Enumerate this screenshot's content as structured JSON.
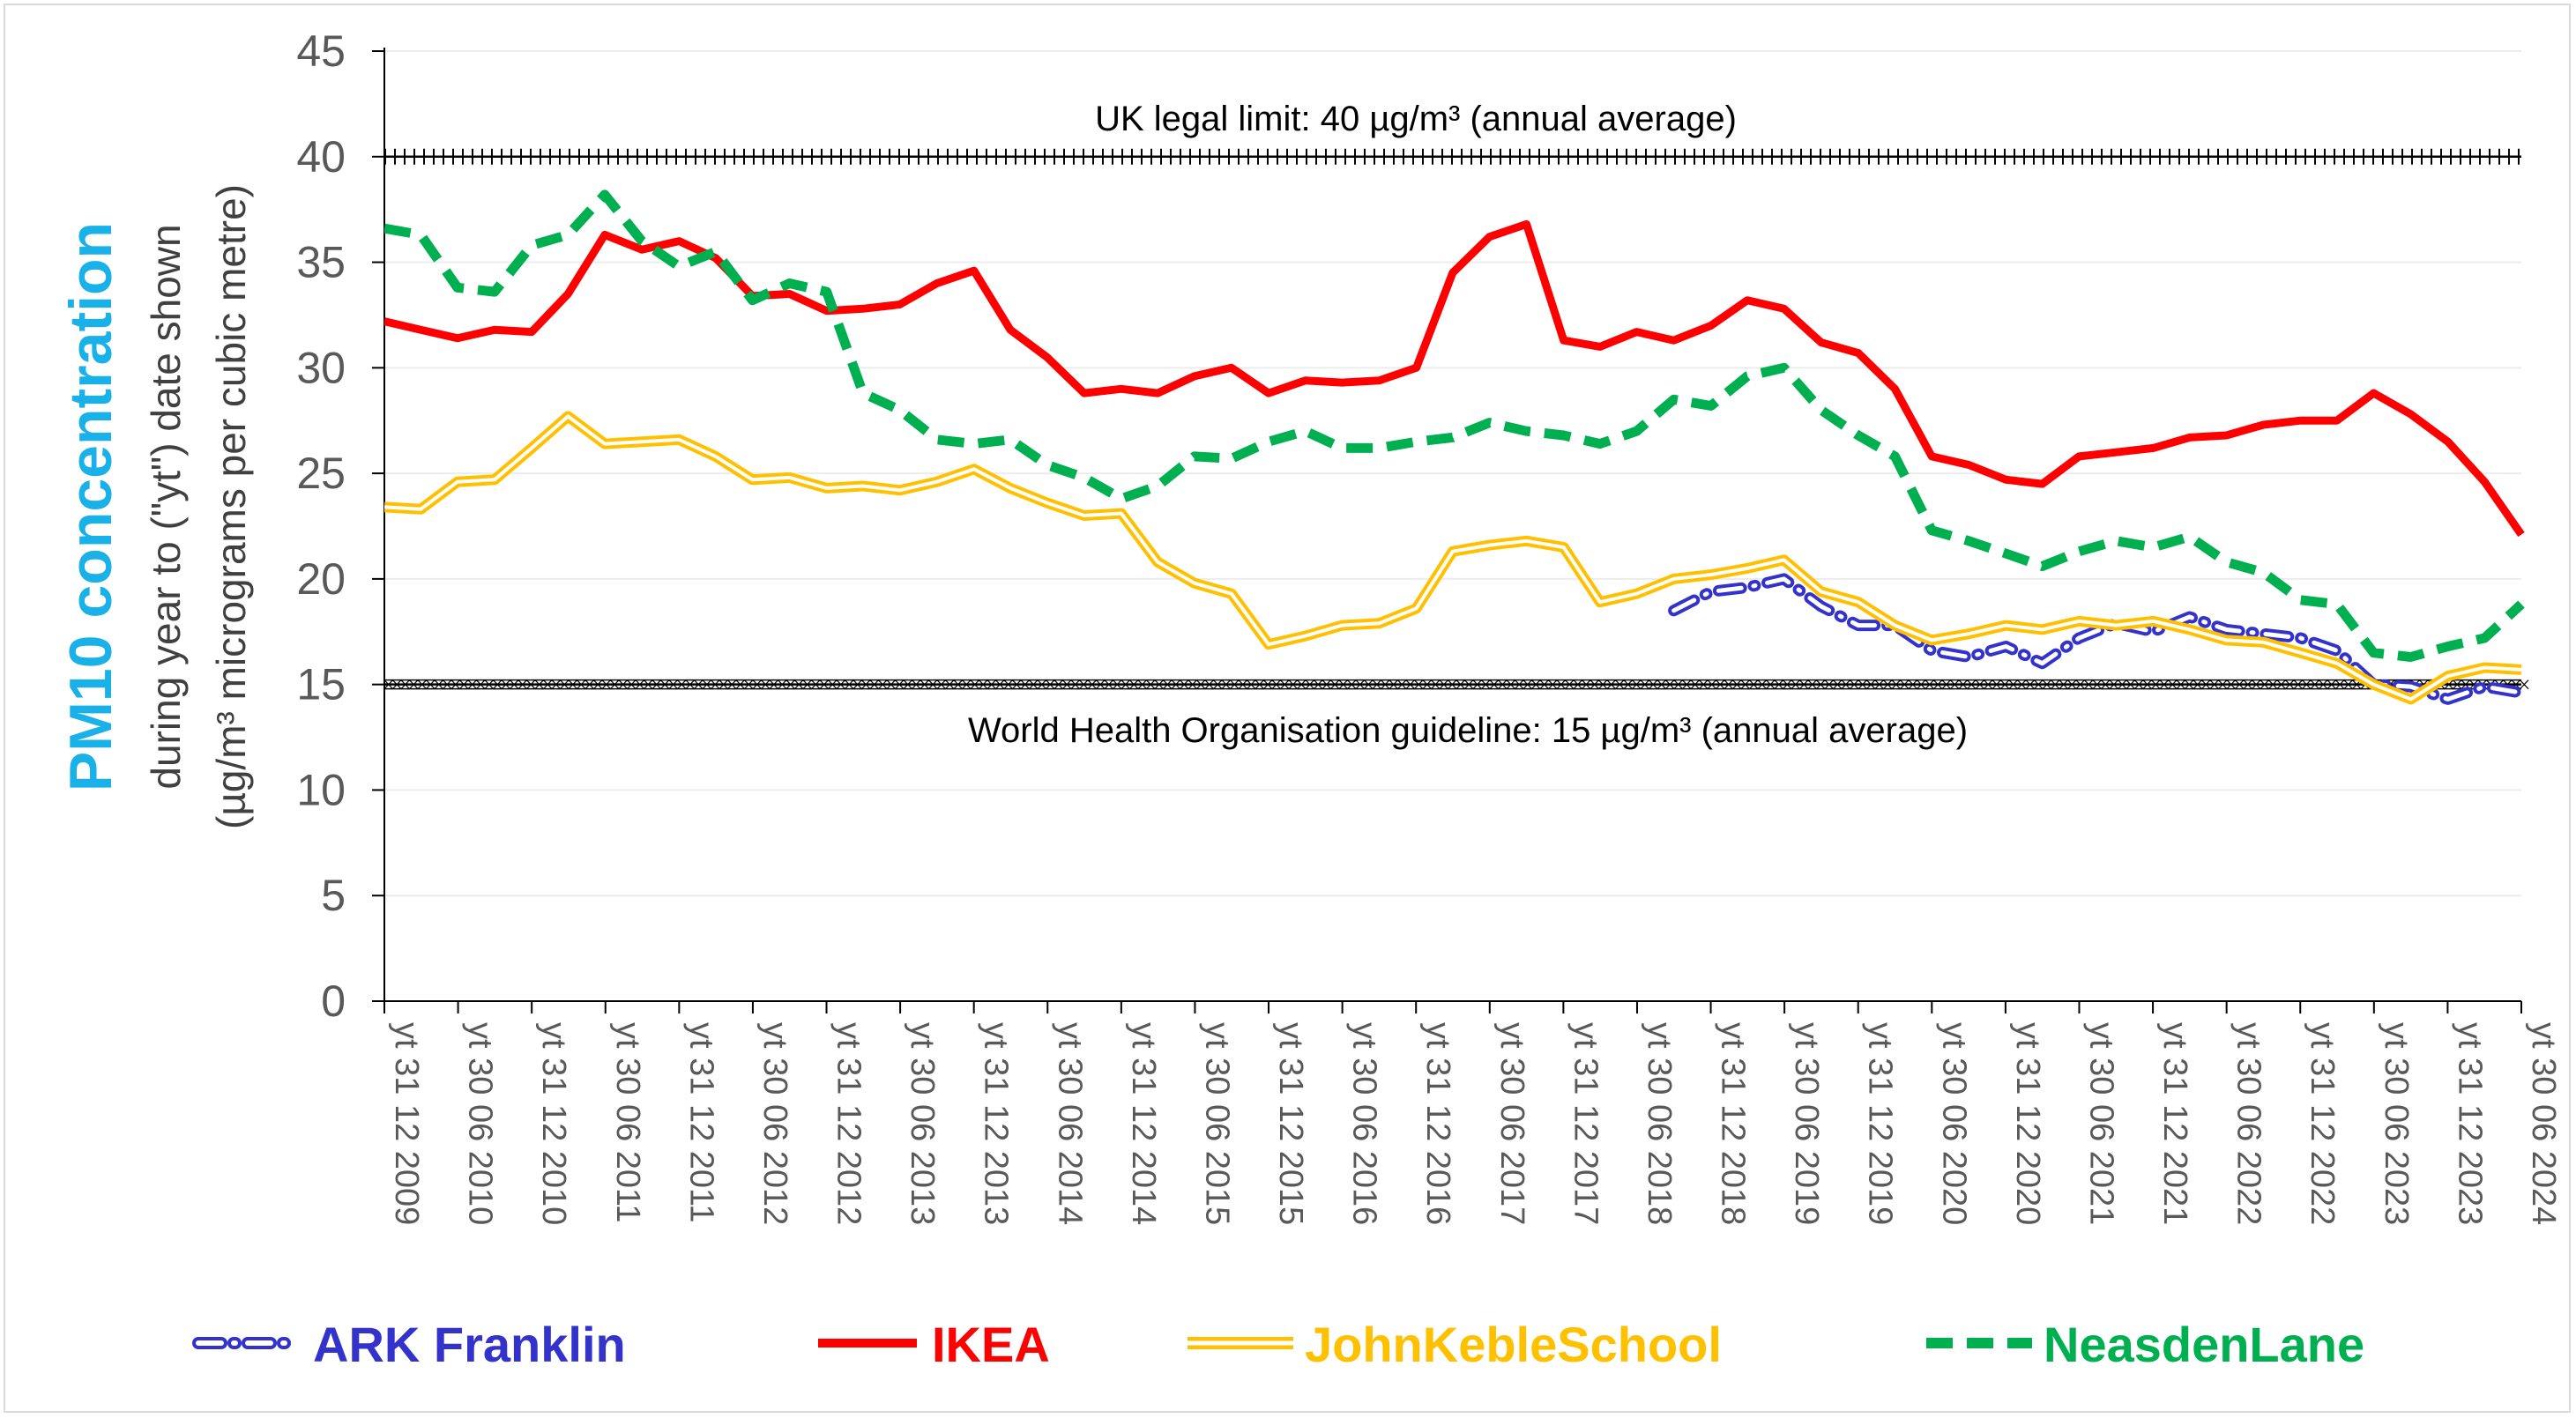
{
  "chart_data": {
    "type": "line",
    "ylabel_main": "PM10 concentration",
    "ylabel_sub1": "during year to (\"yt\") date shown",
    "ylabel_sub2": "(µg/m³ micrograms per cubic metre)",
    "ylim": [
      0,
      45
    ],
    "yticks": [
      0,
      5,
      10,
      15,
      20,
      25,
      30,
      35,
      40,
      45
    ],
    "xlim": [
      "2009-12-31",
      "2024-06-30"
    ],
    "xticks": [
      "yt 31 12 2009",
      "yt 30 06 2010",
      "yt 31 12 2010",
      "yt 30 06 2011",
      "yt 31 12 2011",
      "yt 30 06 2012",
      "yt 31 12 2012",
      "yt 30 06 2013",
      "yt 31 12 2013",
      "yt 30 06 2014",
      "yt 31 12 2014",
      "yt 30 06 2015",
      "yt 31 12 2015",
      "yt 30 06 2016",
      "yt 31 12 2016",
      "yt 30 06 2017",
      "yt 31 12 2017",
      "yt 30 06 2018",
      "yt 31 12 2018",
      "yt 30 06 2019",
      "yt 31 12 2019",
      "yt 30 06 2020",
      "yt 31 12 2020",
      "yt 30 06 2021",
      "yt 31 12 2021",
      "yt 30 06 2022",
      "yt 31 12 2022",
      "yt 30 06 2023",
      "yt 31 12 2023",
      "yt 30 06 2024"
    ],
    "grid": "horizontal",
    "legend_position": "bottom",
    "reference_lines": [
      {
        "value": 40,
        "label": "UK legal limit: 40 µg/m³ (annual average)"
      },
      {
        "value": 15,
        "label": "World Health Organisation guideline: 15 µg/m³ (annual average)"
      }
    ],
    "series": [
      {
        "name": "ARK Franklin",
        "color": "#3333cc",
        "style": "dash-dot-outline",
        "x": [
          "2018-09-30",
          "2018-12-31",
          "2019-03-31",
          "2019-06-30",
          "2019-09-30",
          "2019-12-31",
          "2020-03-31",
          "2020-06-30",
          "2020-09-30",
          "2020-12-31",
          "2021-03-31",
          "2021-06-30",
          "2021-09-30",
          "2021-12-31",
          "2022-03-31",
          "2022-06-30",
          "2022-09-30",
          "2022-12-31",
          "2023-03-31",
          "2023-06-30",
          "2023-09-30",
          "2023-12-31",
          "2024-03-31",
          "2024-06-30"
        ],
        "values": [
          18.5,
          19.4,
          19.6,
          20.0,
          18.7,
          17.8,
          17.8,
          16.6,
          16.3,
          16.8,
          16.0,
          17.2,
          17.9,
          17.5,
          18.2,
          17.6,
          17.4,
          17.2,
          16.6,
          15.0,
          14.9,
          14.3,
          14.9,
          14.6
        ]
      },
      {
        "name": "IKEA",
        "color": "#ff0000",
        "style": "solid",
        "x": [
          "2009-12-31",
          "2010-03-31",
          "2010-06-30",
          "2010-09-30",
          "2010-12-31",
          "2011-03-31",
          "2011-06-30",
          "2011-09-30",
          "2011-12-31",
          "2012-03-31",
          "2012-06-30",
          "2012-09-30",
          "2012-12-31",
          "2013-03-31",
          "2013-06-30",
          "2013-09-30",
          "2013-12-31",
          "2014-03-31",
          "2014-06-30",
          "2014-09-30",
          "2014-12-31",
          "2015-03-31",
          "2015-06-30",
          "2015-09-30",
          "2015-12-31",
          "2016-03-31",
          "2016-06-30",
          "2016-09-30",
          "2016-12-31",
          "2017-03-31",
          "2017-06-30",
          "2017-09-30",
          "2017-12-31",
          "2018-03-31",
          "2018-06-30",
          "2018-09-30",
          "2018-12-31",
          "2019-03-31",
          "2019-06-30",
          "2019-09-30",
          "2019-12-31",
          "2020-03-31",
          "2020-06-30",
          "2020-09-30",
          "2020-12-31",
          "2021-03-31",
          "2021-06-30",
          "2021-09-30",
          "2021-12-31",
          "2022-03-31",
          "2022-06-30",
          "2022-09-30",
          "2022-12-31",
          "2023-03-31",
          "2023-06-30",
          "2023-09-30",
          "2023-12-31",
          "2024-03-31",
          "2024-06-30"
        ],
        "values": [
          32.2,
          31.8,
          31.4,
          31.8,
          31.7,
          33.5,
          36.3,
          35.6,
          36.0,
          35.2,
          33.4,
          33.5,
          32.7,
          32.8,
          33.0,
          34.0,
          34.6,
          31.8,
          30.5,
          28.8,
          29.0,
          28.8,
          29.6,
          30.0,
          28.8,
          29.4,
          29.3,
          29.4,
          30.0,
          34.5,
          36.2,
          36.8,
          31.3,
          31.0,
          31.7,
          31.3,
          32.0,
          33.2,
          32.8,
          31.2,
          30.7,
          29.0,
          25.8,
          25.4,
          24.7,
          24.5,
          25.8,
          26.0,
          26.2,
          26.7,
          26.8,
          27.3,
          27.5,
          27.5,
          28.8,
          27.8,
          26.5,
          24.6,
          22.1
        ]
      },
      {
        "name": "JohnKebleSchool",
        "color": "#ffc000",
        "style": "double",
        "x": [
          "2009-12-31",
          "2010-03-31",
          "2010-06-30",
          "2010-09-30",
          "2010-12-31",
          "2011-03-31",
          "2011-06-30",
          "2011-09-30",
          "2011-12-31",
          "2012-03-31",
          "2012-06-30",
          "2012-09-30",
          "2012-12-31",
          "2013-03-31",
          "2013-06-30",
          "2013-09-30",
          "2013-12-31",
          "2014-03-31",
          "2014-06-30",
          "2014-09-30",
          "2014-12-31",
          "2015-03-31",
          "2015-06-30",
          "2015-09-30",
          "2015-12-31",
          "2016-03-31",
          "2016-06-30",
          "2016-09-30",
          "2016-12-31",
          "2017-03-31",
          "2017-06-30",
          "2017-09-30",
          "2017-12-31",
          "2018-03-31",
          "2018-06-30",
          "2018-09-30",
          "2018-12-31",
          "2019-03-31",
          "2019-06-30",
          "2019-09-30",
          "2019-12-31",
          "2020-03-31",
          "2020-06-30",
          "2020-09-30",
          "2020-12-31",
          "2021-03-31",
          "2021-06-30",
          "2021-09-30",
          "2021-12-31",
          "2022-03-31",
          "2022-06-30",
          "2022-09-30",
          "2022-12-31",
          "2023-03-31",
          "2023-06-30",
          "2023-09-30",
          "2023-12-31",
          "2024-03-31",
          "2024-06-30"
        ],
        "values": [
          23.4,
          23.3,
          24.6,
          24.7,
          26.2,
          27.7,
          26.4,
          26.5,
          26.6,
          25.8,
          24.7,
          24.8,
          24.3,
          24.4,
          24.2,
          24.6,
          25.2,
          24.3,
          23.6,
          23.0,
          23.1,
          20.8,
          19.8,
          19.3,
          16.9,
          17.3,
          17.8,
          17.9,
          18.6,
          21.3,
          21.6,
          21.8,
          21.5,
          18.9,
          19.3,
          20.0,
          20.2,
          20.5,
          20.9,
          19.4,
          18.9,
          17.8,
          17.1,
          17.4,
          17.8,
          17.6,
          18.0,
          17.8,
          18.0,
          17.6,
          17.1,
          17.0,
          16.5,
          16.0,
          15.0,
          14.3,
          15.4,
          15.8,
          15.7
        ]
      },
      {
        "name": "NeasdenLane",
        "color": "#00b050",
        "style": "dashed",
        "x": [
          "2009-12-31",
          "2010-03-31",
          "2010-06-30",
          "2010-09-30",
          "2010-12-31",
          "2011-03-31",
          "2011-06-30",
          "2011-09-30",
          "2011-12-31",
          "2012-03-31",
          "2012-06-30",
          "2012-09-30",
          "2012-12-31",
          "2013-03-31",
          "2013-06-30",
          "2013-09-30",
          "2013-12-31",
          "2014-03-31",
          "2014-06-30",
          "2014-09-30",
          "2014-12-31",
          "2015-03-31",
          "2015-06-30",
          "2015-09-30",
          "2015-12-31",
          "2016-03-31",
          "2016-06-30",
          "2016-09-30",
          "2016-12-31",
          "2017-03-31",
          "2017-06-30",
          "2017-09-30",
          "2017-12-31",
          "2018-03-31",
          "2018-06-30",
          "2018-09-30",
          "2018-12-31",
          "2019-03-31",
          "2019-06-30",
          "2019-09-30",
          "2019-12-31",
          "2020-03-31",
          "2020-06-30",
          "2020-09-30",
          "2020-12-31",
          "2021-03-31",
          "2021-06-30",
          "2021-09-30",
          "2021-12-31",
          "2022-03-31",
          "2022-06-30",
          "2022-09-30",
          "2022-12-31",
          "2023-03-31",
          "2023-06-30",
          "2023-09-30",
          "2023-12-31",
          "2024-03-31",
          "2024-06-30"
        ],
        "values": [
          36.6,
          36.3,
          33.8,
          33.6,
          35.8,
          36.3,
          38.2,
          36.0,
          34.8,
          35.5,
          33.2,
          34.0,
          33.6,
          28.8,
          28.0,
          26.6,
          26.4,
          26.6,
          25.4,
          24.8,
          23.8,
          24.4,
          25.8,
          25.7,
          26.5,
          27.0,
          26.2,
          26.2,
          26.5,
          26.7,
          27.4,
          27.0,
          26.8,
          26.4,
          27.0,
          28.5,
          28.2,
          29.6,
          30.0,
          28.0,
          26.8,
          25.8,
          22.3,
          21.8,
          21.2,
          20.6,
          21.3,
          21.8,
          21.5,
          22.0,
          20.8,
          20.3,
          19.0,
          18.8,
          16.5,
          16.3,
          16.8,
          17.2,
          18.8
        ]
      }
    ]
  }
}
